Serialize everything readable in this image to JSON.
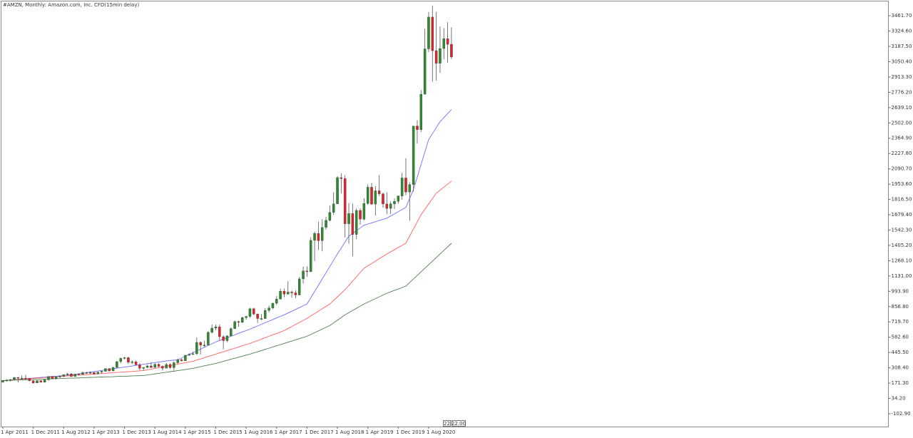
{
  "chart_data": {
    "type": "candlestick",
    "title": "#AMZN, Monthly: Amazon.com, Inc. CFD(15min delay)",
    "categories": [
      "1 Apr 2011",
      null,
      null,
      null,
      null,
      null,
      null,
      null,
      "1 Dec 2011",
      null,
      null,
      null,
      null,
      null,
      null,
      null,
      "1 Aug 2012",
      null,
      null,
      null,
      null,
      null,
      null,
      null,
      "1 Apr 2013",
      null,
      null,
      null,
      null,
      null,
      null,
      null,
      "1 Dec 2013",
      null,
      null,
      null,
      null,
      null,
      null,
      null,
      "1 Aug 2014",
      null,
      null,
      null,
      null,
      null,
      null,
      null,
      "1 Apr 2015",
      null,
      null,
      null,
      null,
      null,
      null,
      null,
      "1 Dec 2015",
      null,
      null,
      null,
      null,
      null,
      null,
      null,
      "1 Aug 2016",
      null,
      null,
      null,
      null,
      null,
      null,
      null,
      "1 Apr 2017",
      null,
      null,
      null,
      null,
      null,
      null,
      null,
      "1 Dec 2017",
      null,
      null,
      null,
      null,
      null,
      null,
      null,
      "1 Aug 2018",
      null,
      null,
      null,
      null,
      null,
      null,
      null,
      "1 Apr 2019",
      null,
      null,
      null,
      null,
      null,
      null,
      null,
      "1 Dec 2019",
      null,
      null,
      null,
      null,
      null,
      null,
      null,
      "1 Aug 2020",
      null,
      null,
      null,
      null,
      null,
      null
    ],
    "ohlc": {
      "open": [
        180,
        196,
        197,
        204,
        222,
        215,
        216,
        213,
        192,
        173,
        194,
        179,
        202,
        231,
        212,
        228,
        233,
        248,
        254,
        232,
        252,
        250,
        265,
        264,
        266,
        253,
        269,
        277,
        301,
        280,
        312,
        364,
        393,
        399,
        358,
        362,
        336,
        304,
        312,
        325,
        312,
        339,
        322,
        305,
        338,
        310,
        354,
        380,
        372,
        421,
        429,
        434,
        536,
        512,
        512,
        626,
        664,
        676,
        587,
        552,
        594,
        659,
        722,
        716,
        758,
        769,
        837,
        790,
        750,
        750,
        823,
        845,
        887,
        924,
        995,
        968,
        987,
        980,
        961,
        1105,
        1176,
        1169,
        1450,
        1512,
        1447,
        1566,
        1629,
        1700,
        1777,
        2012,
        2003,
        1598,
        1690,
        1502,
        1718,
        1640,
        1781,
        1926,
        1775,
        1894,
        1867,
        1776,
        1736,
        1777,
        1800,
        1848,
        2009,
        1883,
        1950,
        2474,
        2442,
        2759,
        3165,
        3450,
        3149,
        3036,
        3168,
        3257,
        3206
      ],
      "high": [
        198,
        206,
        206,
        227,
        227,
        241,
        246,
        218,
        199,
        196,
        195,
        205,
        233,
        232,
        230,
        242,
        249,
        264,
        262,
        253,
        258,
        276,
        273,
        276,
        274,
        276,
        283,
        304,
        305,
        317,
        368,
        400,
        406,
        408,
        376,
        373,
        350,
        314,
        336,
        360,
        349,
        350,
        330,
        352,
        350,
        365,
        390,
        389,
        424,
        439,
        452,
        580,
        545,
        553,
        636,
        696,
        696,
        696,
        600,
        599,
        670,
        731,
        731,
        766,
        774,
        847,
        847,
        795,
        790,
        843,
        866,
        891,
        950,
        1017,
        1018,
        1084,
        1000,
        1002,
        1122,
        1214,
        1217,
        1478,
        1527,
        1618,
        1638,
        1660,
        1763,
        1880,
        2025,
        2050,
        2033,
        1785,
        1779,
        1736,
        1736,
        1828,
        1952,
        1964,
        1936,
        2035,
        1877,
        1881,
        1798,
        1825,
        1852,
        2055,
        2186,
        1972,
        2475,
        2526,
        2796,
        3345,
        3496,
        3552,
        3496,
        3366,
        3352,
        3404,
        3358
      ],
      "low": [
        176,
        186,
        185,
        201,
        177,
        202,
        196,
        189,
        166,
        172,
        176,
        177,
        193,
        208,
        205,
        215,
        224,
        238,
        225,
        226,
        243,
        248,
        253,
        256,
        246,
        251,
        258,
        276,
        278,
        280,
        306,
        350,
        383,
        342,
        342,
        330,
        285,
        284,
        307,
        307,
        310,
        314,
        284,
        303,
        299,
        285,
        343,
        364,
        370,
        415,
        425,
        423,
        428,
        491,
        510,
        615,
        644,
        556,
        474,
        538,
        590,
        656,
        676,
        710,
        740,
        756,
        781,
        710,
        735,
        747,
        805,
        833,
        870,
        921,
        942,
        968,
        936,
        931,
        958,
        1062,
        1124,
        1166,
        1265,
        1363,
        1352,
        1546,
        1620,
        1678,
        1775,
        1872,
        1476,
        1420,
        1307,
        1460,
        1589,
        1628,
        1767,
        1767,
        1672,
        1847,
        1743,
        1685,
        1685,
        1731,
        1780,
        1814,
        1855,
        1626,
        1887,
        2318,
        2421,
        2756,
        3136,
        2872,
        2880,
        2950,
        3072,
        3040,
        3074
      ],
      "close": [
        196,
        197,
        204,
        222,
        215,
        216,
        213,
        192,
        173,
        194,
        179,
        202,
        231,
        212,
        228,
        233,
        248,
        254,
        232,
        252,
        250,
        265,
        264,
        266,
        253,
        269,
        277,
        301,
        280,
        312,
        364,
        393,
        399,
        358,
        362,
        336,
        304,
        312,
        325,
        312,
        339,
        322,
        305,
        338,
        310,
        354,
        380,
        372,
        421,
        429,
        434,
        536,
        512,
        512,
        626,
        664,
        676,
        587,
        552,
        594,
        659,
        722,
        716,
        758,
        769,
        837,
        790,
        750,
        750,
        823,
        845,
        887,
        924,
        995,
        968,
        987,
        980,
        961,
        1105,
        1176,
        1169,
        1450,
        1512,
        1447,
        1566,
        1629,
        1700,
        1777,
        2012,
        2003,
        1598,
        1690,
        1502,
        1718,
        1640,
        1781,
        1926,
        1775,
        1894,
        1867,
        1776,
        1736,
        1777,
        1800,
        1848,
        2009,
        1883,
        1950,
        2474,
        2442,
        2759,
        3165,
        3450,
        3149,
        3036,
        3168,
        3257,
        3206,
        3092
      ]
    },
    "up_color": "#2f8a2f",
    "down_color": "#d8262d",
    "overlays": [
      {
        "color": "#6f6fff",
        "values": [
          194,
          197,
          199,
          202,
          205,
          208,
          211,
          214,
          216,
          219,
          222,
          225,
          228,
          231,
          233,
          236,
          239,
          242,
          245,
          250,
          255,
          260,
          265,
          270,
          275,
          280,
          285,
          290,
          295,
          300,
          305,
          310,
          315,
          320,
          325,
          330,
          335,
          340,
          345,
          350,
          355,
          360,
          365,
          370,
          374,
          377,
          380,
          396,
          412,
          428,
          444,
          460,
          476,
          492,
          508,
          524,
          540,
          553,
          566,
          578,
          591,
          604,
          617,
          630,
          642,
          655,
          669,
          683,
          698,
          712,
          726,
          740,
          755,
          769,
          783,
          799,
          815,
          831,
          848,
          864,
          880,
          936,
          992,
          1048,
          1104,
          1160,
          1216,
          1272,
          1328,
          1381,
          1435,
          1488,
          1512,
          1537,
          1561,
          1585,
          1596,
          1606,
          1617,
          1628,
          1638,
          1649,
          1668,
          1687,
          1707,
          1726,
          1745,
          1825,
          1905,
          2017,
          2129,
          2241,
          2353,
          2406,
          2460,
          2513,
          2549,
          2586,
          2622
        ]
      },
      {
        "color": "#ff6060",
        "values": [
          194,
          196,
          199,
          201,
          204,
          206,
          209,
          211,
          213,
          216,
          218,
          221,
          223,
          226,
          228,
          230,
          233,
          235,
          238,
          240,
          243,
          245,
          247,
          250,
          252,
          255,
          257,
          259,
          262,
          264,
          267,
          269,
          272,
          274,
          276,
          279,
          281,
          284,
          290,
          297,
          303,
          310,
          316,
          322,
          329,
          335,
          342,
          348,
          354,
          361,
          367,
          378,
          388,
          399,
          410,
          420,
          431,
          442,
          452,
          463,
          474,
          484,
          495,
          506,
          516,
          527,
          540,
          552,
          565,
          578,
          591,
          604,
          616,
          629,
          642,
          660,
          678,
          697,
          715,
          733,
          751,
          773,
          794,
          816,
          837,
          859,
          880,
          912,
          944,
          976,
          1008,
          1046,
          1085,
          1123,
          1162,
          1200,
          1221,
          1243,
          1264,
          1285,
          1307,
          1328,
          1347,
          1366,
          1386,
          1405,
          1424,
          1488,
          1552,
          1616,
          1680,
          1728,
          1776,
          1824,
          1872,
          1899,
          1926,
          1954,
          1981
        ]
      },
      {
        "color": "#4f7f4f",
        "values": [
          194,
          195,
          196,
          198,
          199,
          200,
          201,
          203,
          204,
          205,
          206,
          207,
          209,
          210,
          211,
          212,
          214,
          215,
          216,
          217,
          218,
          220,
          221,
          222,
          223,
          225,
          226,
          227,
          228,
          229,
          231,
          232,
          233,
          234,
          236,
          237,
          238,
          239,
          244,
          249,
          254,
          259,
          264,
          269,
          274,
          278,
          283,
          288,
          293,
          298,
          303,
          311,
          318,
          326,
          333,
          341,
          348,
          357,
          366,
          376,
          385,
          394,
          403,
          413,
          422,
          431,
          442,
          452,
          463,
          474,
          484,
          495,
          506,
          516,
          527,
          538,
          548,
          559,
          570,
          580,
          591,
          607,
          623,
          639,
          655,
          671,
          687,
          711,
          735,
          759,
          783,
          802,
          822,
          841,
          861,
          880,
          896,
          912,
          928,
          944,
          960,
          976,
          989,
          1002,
          1014,
          1027,
          1040,
          1072,
          1104,
          1136,
          1168,
          1200,
          1232,
          1264,
          1296,
          1328,
          1360,
          1392,
          1424
        ]
      }
    ],
    "ylim": [
      -218,
      3590
    ],
    "yticks": [
      {
        "value": 3461.7,
        "label": "3461.70"
      },
      {
        "value": 3324.6,
        "label": "3324.60"
      },
      {
        "value": 3187.5,
        "label": "3187.50"
      },
      {
        "value": 3050.4,
        "label": "3050.40"
      },
      {
        "value": 2913.3,
        "label": "2913.30"
      },
      {
        "value": 2776.2,
        "label": "2776.20"
      },
      {
        "value": 2639.1,
        "label": "2639.10"
      },
      {
        "value": 2502,
        "label": "2502.00"
      },
      {
        "value": 2364.9,
        "label": "2364.90"
      },
      {
        "value": 2227.8,
        "label": "2227.80"
      },
      {
        "value": 2090.7,
        "label": "2090.70"
      },
      {
        "value": 1953.6,
        "label": "1953.60"
      },
      {
        "value": 1816.5,
        "label": "1816.50"
      },
      {
        "value": 1679.4,
        "label": "1679.40"
      },
      {
        "value": 1542.3,
        "label": "1542.30"
      },
      {
        "value": 1405.2,
        "label": "1405.20"
      },
      {
        "value": 1268.1,
        "label": "1268.10"
      },
      {
        "value": 1131,
        "label": "1131.00"
      },
      {
        "value": 993.9,
        "label": "993.90"
      },
      {
        "value": 856.8,
        "label": "856.80"
      },
      {
        "value": 719.7,
        "label": "719.70"
      },
      {
        "value": 582.6,
        "label": "582.60"
      },
      {
        "value": 445.5,
        "label": "445.50"
      },
      {
        "value": 308.4,
        "label": "308.40"
      },
      {
        "value": 171.3,
        "label": "171.30"
      },
      {
        "value": 34.2,
        "label": "34.20"
      },
      {
        "value": -102.9,
        "label": "-102.90"
      }
    ],
    "cursor_labels": [
      "22",
      "22:00"
    ]
  }
}
